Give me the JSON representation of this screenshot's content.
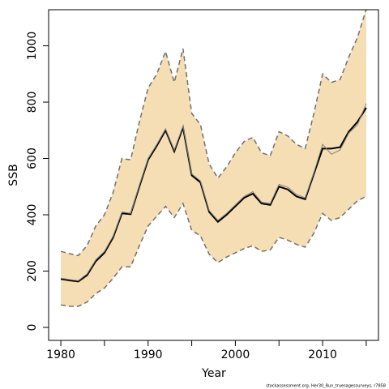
{
  "chart_data": {
    "type": "line",
    "xlabel": "Year",
    "ylabel": "SSB",
    "footnote": "stockassessment.org, Her30_Run_truesagessurveys, r7858",
    "x": [
      1980,
      1981,
      1982,
      1983,
      1984,
      1985,
      1986,
      1987,
      1988,
      1989,
      1990,
      1991,
      1992,
      1993,
      1994,
      1995,
      1996,
      1997,
      1998,
      1999,
      2000,
      2001,
      2002,
      2003,
      2004,
      2005,
      2006,
      2007,
      2008,
      2009,
      2010,
      2011,
      2012,
      2013,
      2014,
      2015
    ],
    "series": [
      {
        "color": "#000000",
        "width": 2,
        "values": [
          172,
          167,
          163,
          185,
          235,
          265,
          320,
          405,
          402,
          500,
          595,
          645,
          700,
          625,
          710,
          540,
          515,
          410,
          375,
          400,
          430,
          460,
          475,
          440,
          435,
          500,
          490,
          465,
          455,
          545,
          635,
          635,
          640,
          695,
          730,
          780
        ]
      },
      {
        "color": "#808080",
        "width": 1,
        "values": [
          175,
          170,
          166,
          190,
          240,
          270,
          325,
          410,
          405,
          505,
          600,
          650,
          705,
          630,
          715,
          545,
          520,
          415,
          380,
          405,
          435,
          465,
          482,
          445,
          440,
          508,
          498,
          472,
          460,
          550,
          650,
          615,
          630,
          690,
          720,
          795
        ]
      },
      {
        "color": "#707070",
        "width": 1.5,
        "dash": true,
        "values": [
          270,
          262,
          255,
          290,
          360,
          400,
          480,
          600,
          595,
          730,
          850,
          900,
          980,
          870,
          990,
          760,
          720,
          580,
          530,
          570,
          620,
          660,
          675,
          620,
          610,
          695,
          680,
          650,
          635,
          760,
          900,
          870,
          880,
          960,
          1030,
          1130
        ]
      },
      {
        "color": "#707070",
        "width": 1.5,
        "dash": true,
        "values": [
          80,
          75,
          75,
          90,
          120,
          140,
          175,
          215,
          215,
          290,
          360,
          395,
          430,
          390,
          440,
          345,
          325,
          260,
          230,
          250,
          265,
          280,
          290,
          270,
          275,
          320,
          310,
          295,
          285,
          335,
          405,
          380,
          390,
          420,
          450,
          465
        ]
      }
    ],
    "band_color": "#f5deb3",
    "xlim": [
      1978.6,
      2016.4
    ],
    "ylim": [
      -46,
      1128
    ],
    "xticks": [
      1980,
      1990,
      2000,
      2010
    ],
    "xminor": [
      1985,
      1995,
      2005,
      2015
    ],
    "yticks": [
      0,
      200,
      400,
      600,
      800,
      1000
    ]
  }
}
